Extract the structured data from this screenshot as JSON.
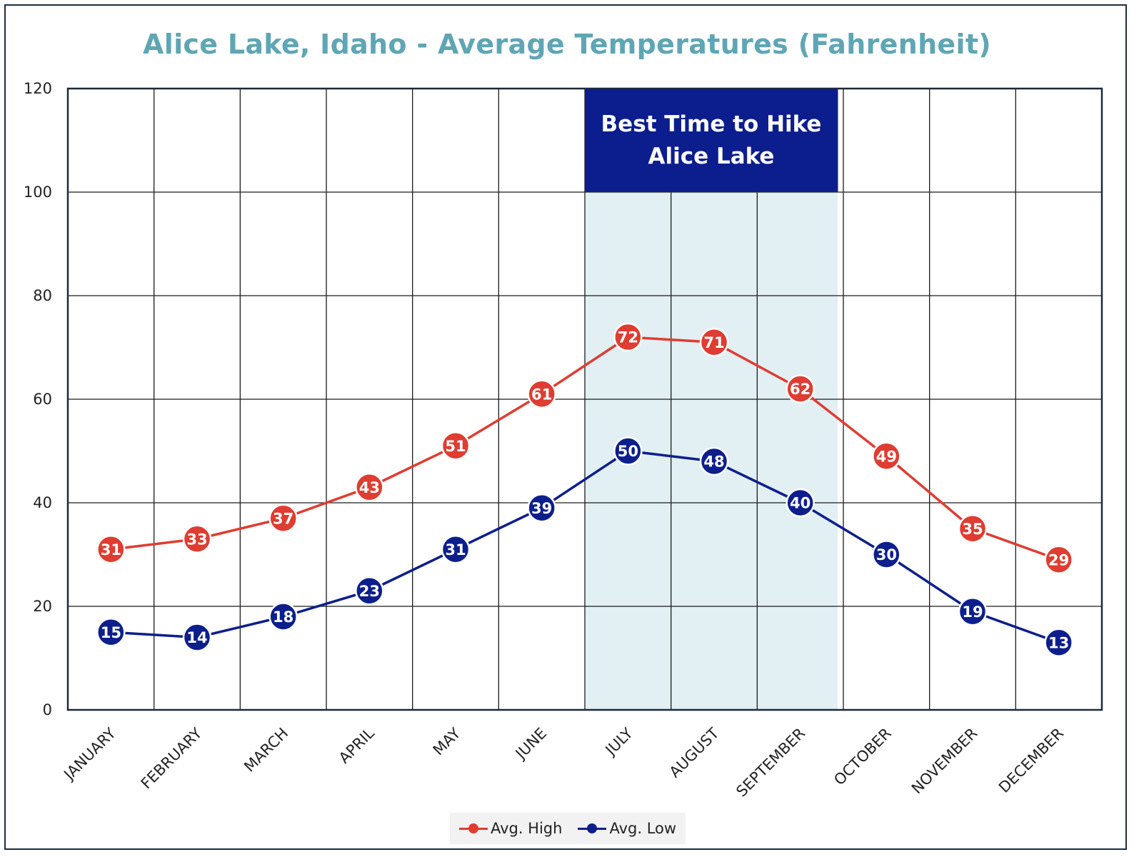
{
  "chart_data": {
    "type": "line",
    "title": "Alice Lake, Idaho - Average Temperatures (Fahrenheit)",
    "xlabel": "",
    "ylabel": "",
    "categories": [
      "JANUARY",
      "FEBRUARY",
      "MARCH",
      "APRIL",
      "MAY",
      "JUNE",
      "JULY",
      "AUGUST",
      "SEPTEMBER",
      "OCTOBER",
      "NOVEMBER",
      "DECEMBER"
    ],
    "ylim": [
      0,
      120
    ],
    "yticks": [
      0,
      20,
      40,
      60,
      80,
      100,
      120
    ],
    "grid": true,
    "legend_position": "bottom",
    "series": [
      {
        "name": "Avg. High",
        "color": "#e03c31",
        "values": [
          31,
          33,
          37,
          43,
          51,
          61,
          72,
          71,
          62,
          49,
          35,
          29
        ]
      },
      {
        "name": "Avg. Low",
        "color": "#0d1f8c",
        "values": [
          15,
          14,
          18,
          23,
          31,
          39,
          50,
          48,
          40,
          30,
          19,
          13
        ]
      }
    ],
    "highlight": {
      "label_line1": "Best Time to Hike",
      "label_line2": "Alice Lake",
      "start_category": "JULY",
      "end_category": "SEPTEMBER",
      "band_color": "#e2eff3",
      "box_color": "#0c1e8e"
    }
  }
}
